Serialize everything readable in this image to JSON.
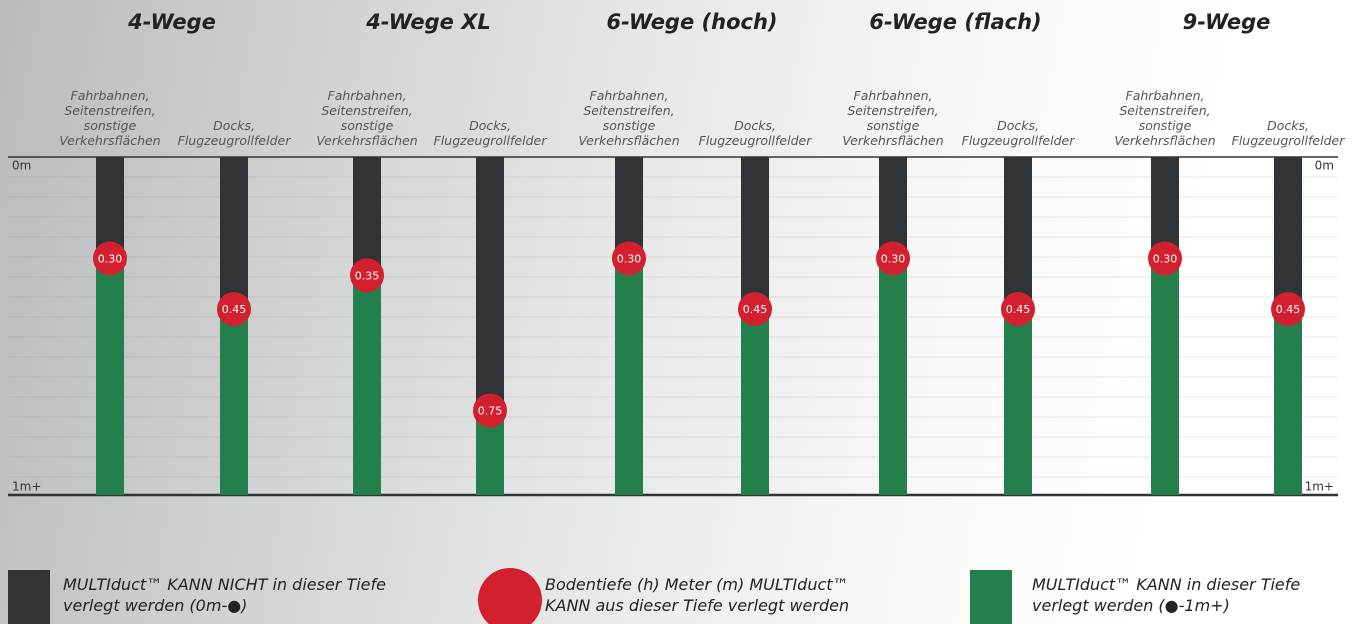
{
  "chart_data": {
    "type": "depth",
    "ylim": [
      0,
      1
    ],
    "yticks": [
      {
        "value": 0,
        "label": "0m"
      },
      {
        "value": 1,
        "label": "1m+"
      }
    ],
    "colors": {
      "above": "#303436",
      "below": "#23804c",
      "marker": "#d3202f"
    },
    "groups": [
      {
        "title": "4-Wege",
        "columns": [
          {
            "label": "Fahrbahnen,\nSeitenstreifen,\nsonstige\nVerkehrsflächen",
            "value": 0.3,
            "value_label": "0.30"
          },
          {
            "label": "Docks,\nFlugzeugrollfelder",
            "value": 0.45,
            "value_label": "0.45"
          }
        ]
      },
      {
        "title": "4-Wege XL",
        "columns": [
          {
            "label": "Fahrbahnen,\nSeitenstreifen,\nsonstige\nVerkehrsflächen",
            "value": 0.35,
            "value_label": "0.35"
          },
          {
            "label": "Docks,\nFlugzeugrollfelder",
            "value": 0.75,
            "value_label": "0.75"
          }
        ]
      },
      {
        "title": "6-Wege (hoch)",
        "columns": [
          {
            "label": "Fahrbahnen,\nSeitenstreifen,\nsonstige\nVerkehrsflächen",
            "value": 0.3,
            "value_label": "0.30"
          },
          {
            "label": "Docks,\nFlugzeugrollfelder",
            "value": 0.45,
            "value_label": "0.45"
          }
        ]
      },
      {
        "title": "6-Wege (flach)",
        "columns": [
          {
            "label": "Fahrbahnen,\nSeitenstreifen,\nsonstige\nVerkehrsflächen",
            "value": 0.3,
            "value_label": "0.30"
          },
          {
            "label": "Docks,\nFlugzeugrollfelder",
            "value": 0.45,
            "value_label": "0.45"
          }
        ]
      },
      {
        "title": "9-Wege",
        "columns": [
          {
            "label": "Fahrbahnen,\nSeitenstreifen,\nsonstige\nVerkehrsflächen",
            "value": 0.3,
            "value_label": "0.30"
          },
          {
            "label": "Docks,\nFlugzeugrollfelder",
            "value": 0.45,
            "value_label": "0.45"
          }
        ]
      }
    ],
    "legend": [
      "MULTIduct™ KANN NICHT in dieser Tiefe\nverlegt werden (0m-●)",
      "Bodentiefe (h) Meter (m) MULTIduct™\nKANN aus dieser Tiefe verlegt werden",
      "MULTIduct™ KANN in dieser Tiefe\nverlegt werden (●-1m+)"
    ]
  }
}
